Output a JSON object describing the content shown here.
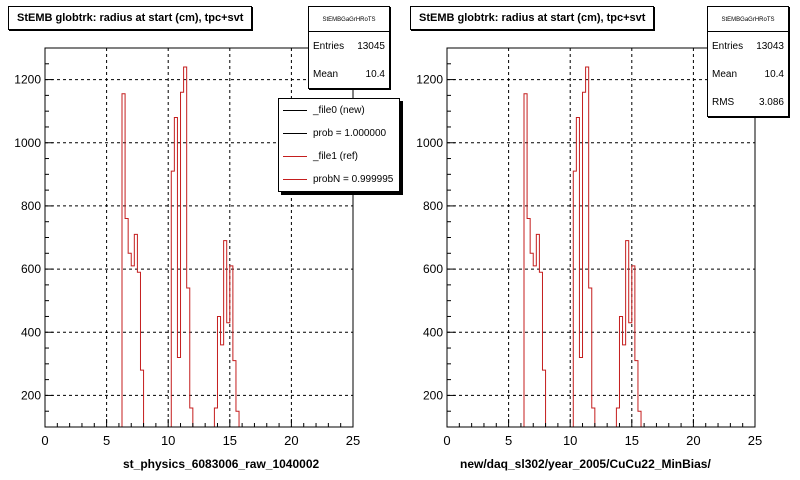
{
  "colors": {
    "histogram": "#c41e1e",
    "axis": "#000000",
    "grid": "#000000"
  },
  "chart_data": [
    {
      "type": "histogram",
      "title": "StEMB globtrk: radius at start (cm), tpc+svt",
      "xlabel": "st_physics_6083006_raw_1040002",
      "xlim": [
        0,
        25
      ],
      "ylim": [
        100,
        1300
      ],
      "x_ticks": [
        0,
        5,
        10,
        15,
        20,
        25
      ],
      "y_ticks": [
        200,
        400,
        600,
        800,
        1000,
        1200
      ],
      "grid": true,
      "bin_width": 0.25,
      "nonzero_bins": [
        {
          "x": 6.25,
          "y": 1155
        },
        {
          "x": 6.5,
          "y": 760
        },
        {
          "x": 6.75,
          "y": 650
        },
        {
          "x": 7.0,
          "y": 610
        },
        {
          "x": 7.25,
          "y": 710
        },
        {
          "x": 7.5,
          "y": 590
        },
        {
          "x": 7.75,
          "y": 280
        },
        {
          "x": 10.25,
          "y": 910
        },
        {
          "x": 10.5,
          "y": 1080
        },
        {
          "x": 10.75,
          "y": 320
        },
        {
          "x": 11.0,
          "y": 1160
        },
        {
          "x": 11.25,
          "y": 1240
        },
        {
          "x": 11.5,
          "y": 540
        },
        {
          "x": 11.75,
          "y": 160
        },
        {
          "x": 13.75,
          "y": 160
        },
        {
          "x": 14.0,
          "y": 450
        },
        {
          "x": 14.25,
          "y": 360
        },
        {
          "x": 14.5,
          "y": 690
        },
        {
          "x": 14.75,
          "y": 430
        },
        {
          "x": 15.0,
          "y": 610
        },
        {
          "x": 15.25,
          "y": 310
        },
        {
          "x": 15.5,
          "y": 150
        }
      ],
      "stats": {
        "header": "StEMBGaGrHRoTS",
        "rows": [
          {
            "label": "Entries",
            "value": "13045"
          },
          {
            "label": "Mean",
            "value": "10.4"
          }
        ]
      },
      "legend": {
        "placement": "top-right",
        "entries": [
          {
            "label": "_file0 (new)",
            "color": "#000000"
          },
          {
            "label": "prob = 1.000000",
            "color": "#000000"
          },
          {
            "label": "_file1 (ref)",
            "color": "#c41e1e"
          },
          {
            "label": "probN = 0.999995",
            "color": "#c41e1e"
          }
        ]
      }
    },
    {
      "type": "histogram",
      "title": "StEMB globtrk: radius at start (cm), tpc+svt",
      "xlabel": "new/daq_sl302/year_2005/CuCu22_MinBias/",
      "xlim": [
        0,
        25
      ],
      "ylim": [
        100,
        1300
      ],
      "x_ticks": [
        0,
        5,
        10,
        15,
        20,
        25
      ],
      "y_ticks": [
        200,
        400,
        600,
        800,
        1000,
        1200
      ],
      "grid": true,
      "bin_width": 0.25,
      "nonzero_bins": [
        {
          "x": 6.25,
          "y": 1155
        },
        {
          "x": 6.5,
          "y": 760
        },
        {
          "x": 6.75,
          "y": 650
        },
        {
          "x": 7.0,
          "y": 610
        },
        {
          "x": 7.25,
          "y": 710
        },
        {
          "x": 7.5,
          "y": 590
        },
        {
          "x": 7.75,
          "y": 280
        },
        {
          "x": 10.25,
          "y": 910
        },
        {
          "x": 10.5,
          "y": 1080
        },
        {
          "x": 10.75,
          "y": 320
        },
        {
          "x": 11.0,
          "y": 1160
        },
        {
          "x": 11.25,
          "y": 1240
        },
        {
          "x": 11.5,
          "y": 540
        },
        {
          "x": 11.75,
          "y": 160
        },
        {
          "x": 13.75,
          "y": 160
        },
        {
          "x": 14.0,
          "y": 450
        },
        {
          "x": 14.25,
          "y": 360
        },
        {
          "x": 14.5,
          "y": 690
        },
        {
          "x": 14.75,
          "y": 430
        },
        {
          "x": 15.0,
          "y": 610
        },
        {
          "x": 15.25,
          "y": 310
        },
        {
          "x": 15.5,
          "y": 150
        }
      ],
      "stats": {
        "header": "StEMBGaGrHRoTS",
        "rows": [
          {
            "label": "Entries",
            "value": "13043"
          },
          {
            "label": "Mean",
            "value": "10.4"
          },
          {
            "label": "RMS",
            "value": "3.086"
          }
        ]
      }
    }
  ]
}
